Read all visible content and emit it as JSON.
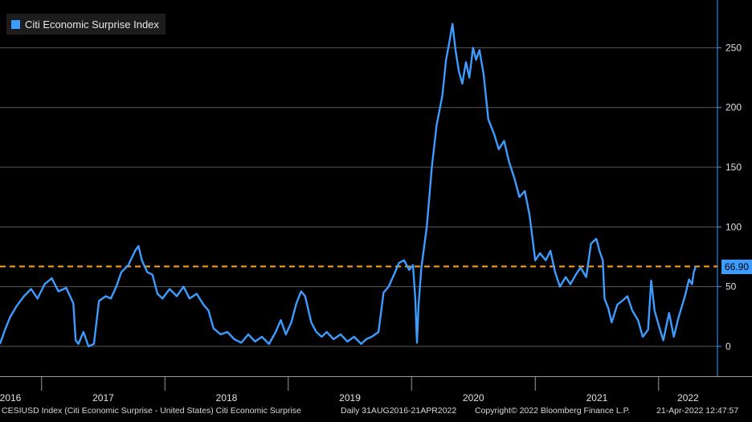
{
  "chart_data": {
    "type": "line",
    "legend_placement": "top-left",
    "grid": true,
    "series": [
      {
        "name": "Citi Economic Surprise Index",
        "color": "#3d9cff",
        "points": [
          [
            "2016-08-31",
            2
          ],
          [
            "2016-09-15",
            14
          ],
          [
            "2016-10-01",
            25
          ],
          [
            "2016-10-20",
            34
          ],
          [
            "2016-11-10",
            42
          ],
          [
            "2016-12-01",
            48
          ],
          [
            "2016-12-20",
            40
          ],
          [
            "2017-01-10",
            52
          ],
          [
            "2017-01-31",
            57
          ],
          [
            "2017-02-20",
            46
          ],
          [
            "2017-03-15",
            49
          ],
          [
            "2017-04-05",
            36
          ],
          [
            "2017-04-12",
            5
          ],
          [
            "2017-04-20",
            2
          ],
          [
            "2017-05-05",
            12
          ],
          [
            "2017-05-20",
            0
          ],
          [
            "2017-06-05",
            2
          ],
          [
            "2017-06-20",
            38
          ],
          [
            "2017-07-10",
            42
          ],
          [
            "2017-07-25",
            40
          ],
          [
            "2017-08-10",
            50
          ],
          [
            "2017-08-25",
            62
          ],
          [
            "2017-09-15",
            68
          ],
          [
            "2017-10-05",
            80
          ],
          [
            "2017-10-15",
            84
          ],
          [
            "2017-10-25",
            72
          ],
          [
            "2017-11-10",
            62
          ],
          [
            "2017-11-25",
            60
          ],
          [
            "2017-12-10",
            44
          ],
          [
            "2017-12-25",
            40
          ],
          [
            "2018-01-15",
            48
          ],
          [
            "2018-02-05",
            42
          ],
          [
            "2018-02-25",
            50
          ],
          [
            "2018-03-15",
            40
          ],
          [
            "2018-04-05",
            44
          ],
          [
            "2018-04-25",
            35
          ],
          [
            "2018-05-10",
            30
          ],
          [
            "2018-05-25",
            15
          ],
          [
            "2018-06-15",
            10
          ],
          [
            "2018-07-05",
            12
          ],
          [
            "2018-07-25",
            6
          ],
          [
            "2018-08-15",
            3
          ],
          [
            "2018-09-05",
            10
          ],
          [
            "2018-09-25",
            4
          ],
          [
            "2018-10-15",
            8
          ],
          [
            "2018-11-05",
            2
          ],
          [
            "2018-11-25",
            12
          ],
          [
            "2018-12-10",
            22
          ],
          [
            "2018-12-25",
            10
          ],
          [
            "2019-01-10",
            20
          ],
          [
            "2019-01-25",
            36
          ],
          [
            "2019-02-08",
            46
          ],
          [
            "2019-02-20",
            42
          ],
          [
            "2019-03-10",
            20
          ],
          [
            "2019-03-25",
            12
          ],
          [
            "2019-04-10",
            8
          ],
          [
            "2019-04-25",
            12
          ],
          [
            "2019-05-15",
            6
          ],
          [
            "2019-06-05",
            10
          ],
          [
            "2019-06-25",
            4
          ],
          [
            "2019-07-15",
            8
          ],
          [
            "2019-08-05",
            2
          ],
          [
            "2019-08-20",
            6
          ],
          [
            "2019-09-05",
            8
          ],
          [
            "2019-09-25",
            12
          ],
          [
            "2019-10-10",
            45
          ],
          [
            "2019-10-25",
            50
          ],
          [
            "2019-11-10",
            60
          ],
          [
            "2019-11-25",
            70
          ],
          [
            "2019-12-10",
            72
          ],
          [
            "2019-12-25",
            64
          ],
          [
            "2020-01-05",
            68
          ],
          [
            "2020-01-12",
            40
          ],
          [
            "2020-01-17",
            3
          ],
          [
            "2020-01-22",
            36
          ],
          [
            "2020-01-30",
            66
          ],
          [
            "2020-02-15",
            100
          ],
          [
            "2020-03-01",
            150
          ],
          [
            "2020-03-15",
            185
          ],
          [
            "2020-04-01",
            210
          ],
          [
            "2020-04-12",
            240
          ],
          [
            "2020-04-22",
            255
          ],
          [
            "2020-05-01",
            270
          ],
          [
            "2020-05-10",
            248
          ],
          [
            "2020-05-20",
            230
          ],
          [
            "2020-05-30",
            220
          ],
          [
            "2020-06-10",
            238
          ],
          [
            "2020-06-20",
            225
          ],
          [
            "2020-07-01",
            250
          ],
          [
            "2020-07-10",
            240
          ],
          [
            "2020-07-20",
            248
          ],
          [
            "2020-08-01",
            228
          ],
          [
            "2020-08-15",
            190
          ],
          [
            "2020-09-01",
            178
          ],
          [
            "2020-09-15",
            165
          ],
          [
            "2020-10-01",
            172
          ],
          [
            "2020-10-15",
            155
          ],
          [
            "2020-11-01",
            140
          ],
          [
            "2020-11-15",
            125
          ],
          [
            "2020-12-01",
            130
          ],
          [
            "2020-12-15",
            110
          ],
          [
            "2021-01-01",
            72
          ],
          [
            "2021-01-15",
            78
          ],
          [
            "2021-02-01",
            72
          ],
          [
            "2021-02-15",
            80
          ],
          [
            "2021-03-01",
            62
          ],
          [
            "2021-03-15",
            50
          ],
          [
            "2021-04-01",
            58
          ],
          [
            "2021-04-15",
            52
          ],
          [
            "2021-05-01",
            60
          ],
          [
            "2021-05-15",
            66
          ],
          [
            "2021-06-01",
            58
          ],
          [
            "2021-06-15",
            86
          ],
          [
            "2021-07-01",
            90
          ],
          [
            "2021-07-10",
            80
          ],
          [
            "2021-07-20",
            72
          ],
          [
            "2021-07-25",
            40
          ],
          [
            "2021-08-05",
            32
          ],
          [
            "2021-08-15",
            20
          ],
          [
            "2021-09-01",
            35
          ],
          [
            "2021-09-15",
            38
          ],
          [
            "2021-10-01",
            42
          ],
          [
            "2021-10-15",
            30
          ],
          [
            "2021-11-01",
            22
          ],
          [
            "2021-11-15",
            8
          ],
          [
            "2021-12-01",
            14
          ],
          [
            "2021-12-10",
            55
          ],
          [
            "2021-12-20",
            30
          ],
          [
            "2022-01-01",
            18
          ],
          [
            "2022-01-15",
            5
          ],
          [
            "2022-02-01",
            28
          ],
          [
            "2022-02-15",
            8
          ],
          [
            "2022-03-01",
            24
          ],
          [
            "2022-03-20",
            42
          ],
          [
            "2022-04-01",
            56
          ],
          [
            "2022-04-10",
            52
          ],
          [
            "2022-04-15",
            62
          ],
          [
            "2022-04-21",
            66.9
          ]
        ]
      }
    ],
    "reference_line": {
      "value": 66.9,
      "color": "#ffa31a",
      "label": "66.90"
    },
    "y_axis": {
      "side": "right",
      "range": [
        -25,
        290
      ],
      "ticks": [
        0,
        50,
        100,
        150,
        200,
        250
      ]
    },
    "x_axis": {
      "range": [
        "2016-08-31",
        "2022-04-21"
      ],
      "year_labels": [
        "2016",
        "2017",
        "2018",
        "2019",
        "2020",
        "2021",
        "2022"
      ]
    }
  },
  "legend": {
    "label": "Citi Economic Surprise Index"
  },
  "footer": {
    "ticker": "CESIUSD Index (Citi Economic Surprise - United States) Citi Economic Surprise",
    "period": "Daily 31AUG2016-21APR2022",
    "copyright": "Copyright© 2022 Bloomberg Finance L.P.",
    "timestamp": "21-Apr-2022 12:47:57"
  }
}
